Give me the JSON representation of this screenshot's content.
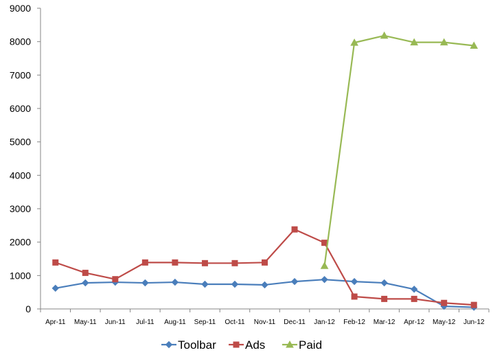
{
  "chart_data": {
    "type": "line",
    "title": "",
    "xlabel": "",
    "ylabel": "",
    "ylim": [
      0,
      9000
    ],
    "yticks": [
      0,
      1000,
      2000,
      3000,
      4000,
      5000,
      6000,
      7000,
      8000,
      9000
    ],
    "grid": false,
    "legend_position": "bottom",
    "categories": [
      "Apr-11",
      "May-11",
      "Jun-11",
      "Jul-11",
      "Aug-11",
      "Sep-11",
      "Oct-11",
      "Nov-11",
      "Dec-11",
      "Jan-12",
      "Feb-12",
      "Mar-12",
      "Apr-12",
      "May-12",
      "Jun-12"
    ],
    "series": [
      {
        "name": "Toolbar",
        "color": "#4a7ebb",
        "marker": "diamond",
        "values": [
          620,
          780,
          800,
          780,
          800,
          740,
          740,
          720,
          820,
          880,
          820,
          780,
          590,
          80,
          50
        ]
      },
      {
        "name": "Ads",
        "color": "#be4b48",
        "marker": "square",
        "values": [
          1390,
          1080,
          890,
          1390,
          1390,
          1370,
          1370,
          1390,
          2380,
          1980,
          370,
          300,
          300,
          180,
          120
        ]
      },
      {
        "name": "Paid",
        "color": "#98b954",
        "marker": "triangle",
        "values": [
          null,
          null,
          null,
          null,
          null,
          null,
          null,
          null,
          null,
          1290,
          7970,
          8180,
          7980,
          7980,
          7880
        ]
      }
    ]
  }
}
